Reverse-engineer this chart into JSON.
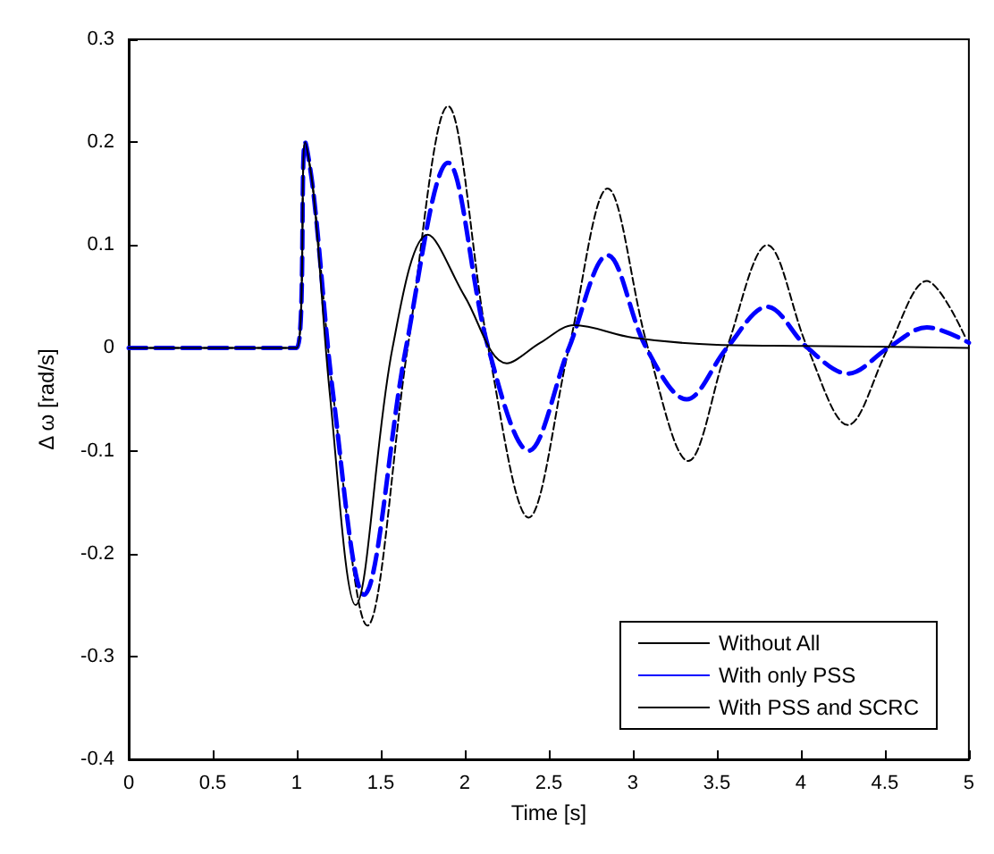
{
  "chart_data": {
    "type": "line",
    "xlabel": "Time [s]",
    "ylabel": "Δ ω [rad/s]",
    "xlim": [
      0,
      5
    ],
    "xticks": [
      0,
      0.5,
      1,
      1.5,
      2,
      2.5,
      3,
      3.5,
      4,
      4.5,
      5
    ],
    "ylim": [
      -0.4,
      0.3
    ],
    "yticks": [
      -0.4,
      -0.3,
      -0.2,
      -0.1,
      0,
      0.1,
      0.2,
      0.3
    ],
    "grid": false,
    "legend": "bottom right",
    "marker": "none",
    "series": [
      {
        "name": "Without All",
        "color": "#000000",
        "line_style": "dashed",
        "x": [
          0,
          1,
          1.05,
          1.1,
          1.22,
          1.42,
          1.66,
          1.9,
          2.14,
          2.38,
          2.62,
          2.85,
          3.09,
          3.33,
          3.56,
          3.8,
          4.04,
          4.28,
          4.52,
          4.75,
          4.98
        ],
        "values": [
          0,
          0,
          0.2,
          0.15,
          -0.05,
          -0.27,
          0,
          0.235,
          0,
          -0.165,
          0,
          0.155,
          0,
          -0.11,
          0,
          0.1,
          0,
          -0.075,
          0,
          0.065,
          0.01
        ]
      },
      {
        "name": "With only PSS",
        "color": "#0000ff",
        "line_style": "dashed",
        "x": [
          0,
          1,
          1.05,
          1.1,
          1.22,
          1.4,
          1.65,
          1.9,
          2.14,
          2.38,
          2.62,
          2.85,
          3.08,
          3.32,
          3.56,
          3.8,
          4.04,
          4.28,
          4.52,
          4.75,
          5
        ],
        "values": [
          0,
          0,
          0.2,
          0.15,
          -0.05,
          -0.24,
          0,
          0.18,
          0,
          -0.1,
          0,
          0.09,
          0,
          -0.05,
          0,
          0.04,
          0,
          -0.025,
          0,
          0.02,
          0.005
        ]
      },
      {
        "name": "With PSS and SCRC",
        "color": "#000000",
        "line_style": "solid",
        "x": [
          0,
          1,
          1.05,
          1.1,
          1.2,
          1.35,
          1.57,
          1.78,
          2.0,
          2.25,
          2.45,
          2.65,
          3.0,
          3.5,
          4.0,
          5
        ],
        "values": [
          0,
          0,
          0.2,
          0.15,
          -0.05,
          -0.25,
          0,
          0.11,
          0.05,
          -0.015,
          0.005,
          0.022,
          0.01,
          0.003,
          0.002,
          0
        ]
      }
    ]
  }
}
